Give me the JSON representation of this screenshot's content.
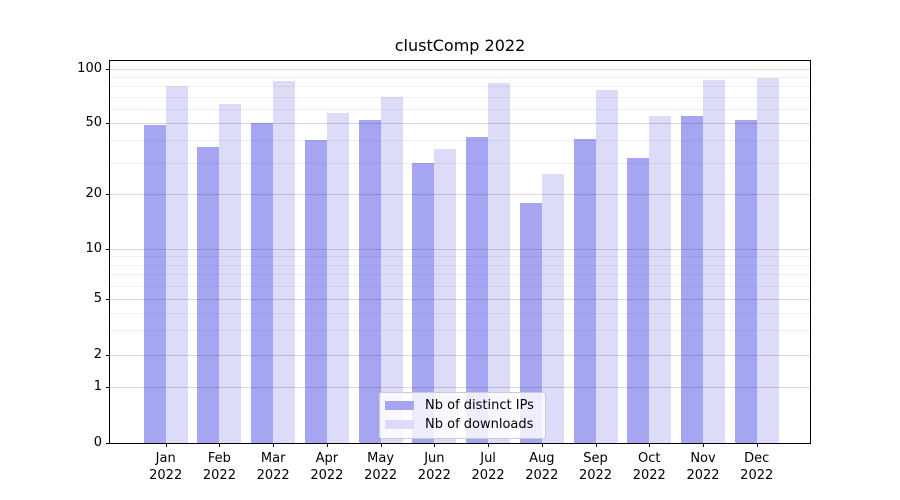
{
  "title": "clustComp 2022",
  "chart_data": {
    "type": "bar",
    "title": "clustComp 2022",
    "categories": [
      "Jan 2022",
      "Feb 2022",
      "Mar 2022",
      "Apr 2022",
      "May 2022",
      "Jun 2022",
      "Jul 2022",
      "Aug 2022",
      "Sep 2022",
      "Oct 2022",
      "Nov 2022",
      "Dec 2022"
    ],
    "series": [
      {
        "name": "Nb of distinct IPs",
        "color": "#a5a5f2",
        "values": [
          49,
          37,
          50,
          40,
          52,
          30,
          42,
          18,
          41,
          32,
          55,
          52
        ]
      },
      {
        "name": "Nb of downloads",
        "color": "#dcdcf9",
        "values": [
          80,
          64,
          86,
          57,
          70,
          36,
          84,
          26,
          76,
          55,
          87,
          89
        ]
      }
    ],
    "xlabel": "",
    "ylabel": "",
    "y_scale": "symlog",
    "y_ticks": [
      100,
      50,
      20,
      10,
      5,
      2,
      1,
      0
    ],
    "y_minor_gridlines": [
      90,
      80,
      70,
      60,
      40,
      30,
      9,
      8,
      7,
      6,
      4,
      3
    ],
    "ylim": [
      0,
      111
    ],
    "grid": "horizontal major+minor, drawn over bars",
    "legend_position": "lower center"
  },
  "colors": {
    "background": "#ffffff",
    "bar_distinct_ips": "#a5a5f2",
    "bar_downloads": "#dcdcf9",
    "spine": "#000000",
    "grid_major": "#d9d9d9",
    "grid_minor": "#efefef",
    "legend_border": "#cccccc",
    "text": "#000000"
  }
}
